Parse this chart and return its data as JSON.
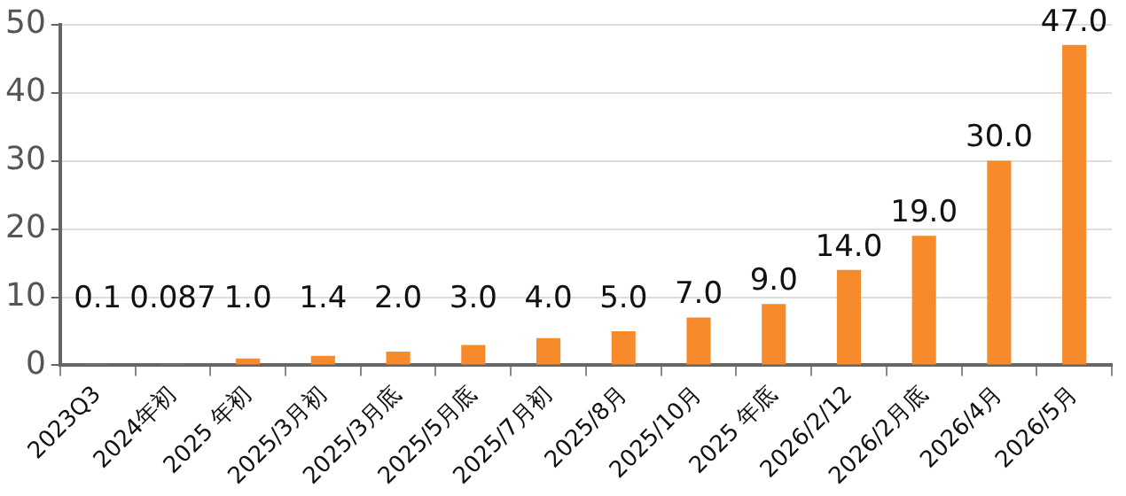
{
  "chart_data": {
    "type": "bar",
    "categories": [
      "2023Q3",
      "2024年初",
      "2025 年初",
      "2025/3月初",
      "2025/3月底",
      "2025/5月底",
      "2025/7月初",
      "2025/8月",
      "2025/10月",
      "2025 年底",
      "2026/2/12",
      "2026/2月底",
      "2026/4月",
      "2026/5月"
    ],
    "values": [
      0.1,
      0.087,
      1,
      1.4,
      2,
      3,
      4,
      5,
      7,
      9,
      14,
      19,
      30,
      47
    ],
    "value_labels": [
      "0.1",
      "0.087",
      "1.0",
      "1.4",
      "2.0",
      "3.0",
      "4.0",
      "5.0",
      "7.0",
      "9.0",
      "14.0",
      "19.0",
      "30.0",
      "47.0"
    ],
    "color": "#f78a2a",
    "ylim": [
      0,
      50
    ],
    "yticks": [
      0,
      10,
      20,
      30,
      40,
      50
    ],
    "grid": "y",
    "legend": false
  }
}
